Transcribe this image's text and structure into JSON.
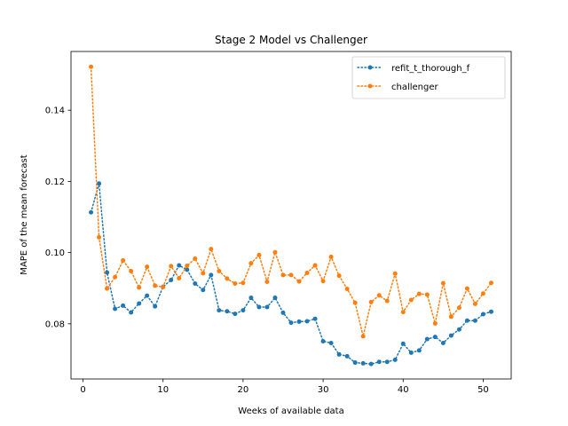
{
  "chart_data": {
    "type": "line",
    "title": "Stage 2 Model vs Challenger",
    "xlabel": "Weeks of available data",
    "ylabel": "MAPE of the mean forecast",
    "xlim": [
      -1.5,
      53.5
    ],
    "ylim": [
      0.0645,
      0.1565
    ],
    "xticks": [
      0,
      10,
      20,
      30,
      40,
      50
    ],
    "yticks": [
      0.08,
      0.1,
      0.12,
      0.14
    ],
    "ytick_labels": [
      "0.08",
      "0.10",
      "0.12",
      "0.14"
    ],
    "grid": false,
    "legend_position": "top-right",
    "x": [
      1,
      2,
      3,
      4,
      5,
      6,
      7,
      8,
      9,
      10,
      11,
      12,
      13,
      14,
      15,
      16,
      17,
      18,
      19,
      20,
      21,
      22,
      23,
      24,
      25,
      26,
      27,
      28,
      29,
      30,
      31,
      32,
      33,
      34,
      35,
      36,
      37,
      38,
      39,
      40,
      41,
      42,
      43,
      44,
      45,
      46,
      47,
      48,
      49,
      50,
      51
    ],
    "series": [
      {
        "name": "refit_t_thorough_f",
        "color": "#1f77b4",
        "values": [
          0.1113,
          0.1194,
          0.0944,
          0.0842,
          0.0851,
          0.0832,
          0.0857,
          0.0879,
          0.0849,
          0.0904,
          0.0923,
          0.0964,
          0.0952,
          0.0913,
          0.0895,
          0.0937,
          0.0838,
          0.0835,
          0.0828,
          0.0838,
          0.0873,
          0.0847,
          0.0847,
          0.0873,
          0.0831,
          0.0803,
          0.0806,
          0.0807,
          0.0814,
          0.0751,
          0.0746,
          0.0714,
          0.0709,
          0.0691,
          0.0689,
          0.0687,
          0.0693,
          0.0693,
          0.0699,
          0.0744,
          0.0719,
          0.0725,
          0.0757,
          0.0763,
          0.0746,
          0.0767,
          0.0784,
          0.0809,
          0.0809,
          0.0827,
          0.0834
        ]
      },
      {
        "name": "challenger",
        "color": "#ff7f0e",
        "values": [
          0.1522,
          0.1043,
          0.0899,
          0.0931,
          0.0978,
          0.0948,
          0.0902,
          0.096,
          0.0907,
          0.0903,
          0.0962,
          0.0928,
          0.0963,
          0.0983,
          0.0942,
          0.101,
          0.0948,
          0.0927,
          0.0913,
          0.0915,
          0.097,
          0.0993,
          0.0918,
          0.1001,
          0.0937,
          0.0937,
          0.0919,
          0.0943,
          0.0964,
          0.092,
          0.0988,
          0.0935,
          0.0898,
          0.0859,
          0.0765,
          0.0861,
          0.088,
          0.0864,
          0.0941,
          0.0833,
          0.0867,
          0.0884,
          0.0882,
          0.0801,
          0.0914,
          0.082,
          0.0845,
          0.0899,
          0.0856,
          0.0885,
          0.0915
        ]
      }
    ]
  }
}
